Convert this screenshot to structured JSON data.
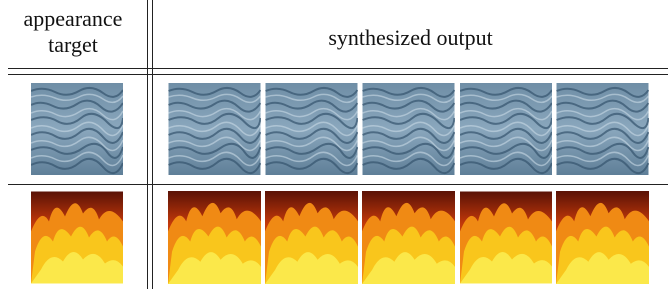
{
  "header": {
    "left_column": [
      "appearance",
      "target"
    ],
    "right_column": "synthesized output"
  }
}
